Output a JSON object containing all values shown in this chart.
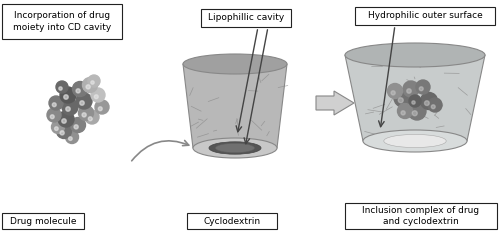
{
  "background_color": "#ffffff",
  "fig_width": 5.0,
  "fig_height": 2.31,
  "dpi": 100,
  "labels": {
    "drug_molecule": "Drug molecule",
    "cyclodextrin": "Cyclodextrin",
    "inclusion_complex": "Inclusion complex of drug\nand cyclodextrin",
    "incorporation": "Incorporation of drug\nmoiety into CD cavity",
    "lipophillic": "Lipophillic cavity",
    "hydrophilic": "Hydrophilic outer surface"
  },
  "text_fontsize": 7,
  "small_fontsize": 6.5
}
